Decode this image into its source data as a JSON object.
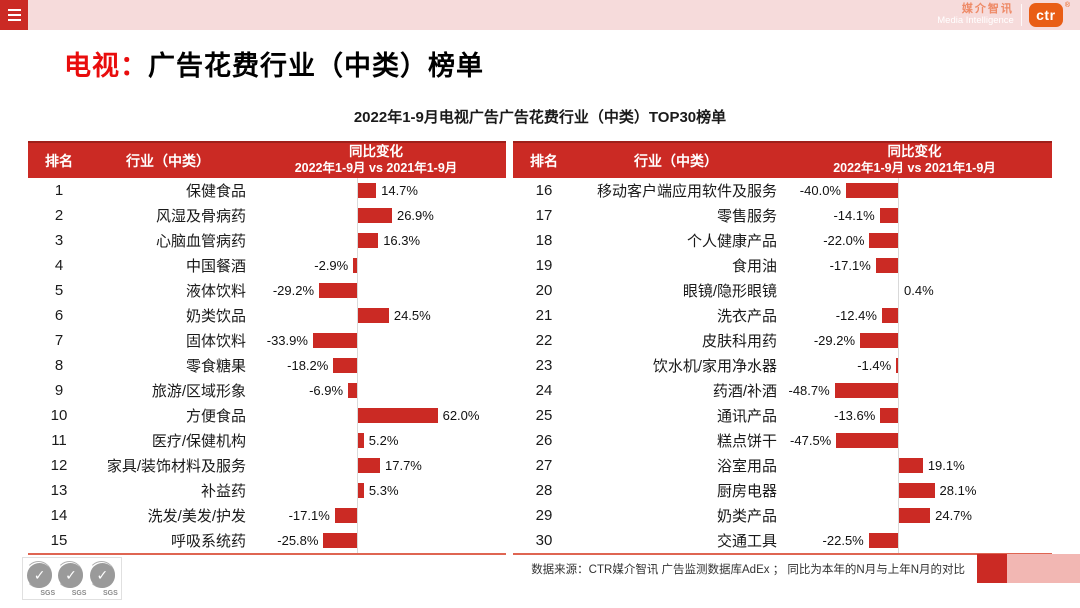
{
  "top_bar": {
    "brand": {
      "cn": "媒介智讯",
      "en": "Media Intelligence",
      "logo": "ctr",
      "registered_mark": "®"
    }
  },
  "title": {
    "highlight": "电视：",
    "rest": "广告花费行业（中类）榜单"
  },
  "subtitle": "2022年1-9月电视广告广告花费行业（中类）TOP30榜单",
  "table_headers": {
    "rank": "排名",
    "industry": "行业（中类）",
    "change_line1": "同比变化",
    "change_line2": "2022年1-9月 vs 2021年1-9月"
  },
  "footer": {
    "source_note": "数据来源：CTR媒介智讯 广告监测数据库AdEx ； 同比为本年的N月与上年N月的对比",
    "sgs_label": "SGS"
  },
  "colors": {
    "accent_red": "#cb2a24",
    "topbar_pink": "#f6dbdb",
    "ctr_orange": "#e95d15",
    "brand_salmon": "#ee8a67",
    "bottom_line_salmon": "#df6552",
    "axis_gray": "#d9d9d9",
    "footer_pink": "#f2b7b3"
  },
  "chart_data": {
    "type": "bar",
    "orientation": "horizontal",
    "title": "2022年1-9月电视广告广告花费行业（中类）TOP30榜单",
    "value_unit": "%",
    "value_format": "one_decimal_percent",
    "bar_color": "#cb2a24",
    "zero_axis": true,
    "panels": [
      {
        "ranks": [
          1,
          2,
          3,
          4,
          5,
          6,
          7,
          8,
          9,
          10,
          11,
          12,
          13,
          14,
          15
        ],
        "categories": [
          "保健食品",
          "风湿及骨病药",
          "心脑血管病药",
          "中国餐酒",
          "液体饮料",
          "奶类饮品",
          "固体饮料",
          "零食糖果",
          "旅游/区域形象",
          "方便食品",
          "医疗/保健机构",
          "家具/装饰材料及服务",
          "补益药",
          "洗发/美发/护发",
          "呼吸系统药"
        ],
        "values": [
          14.7,
          26.9,
          16.3,
          -2.9,
          -29.2,
          24.5,
          -33.9,
          -18.2,
          -6.9,
          62.0,
          5.2,
          17.7,
          5.3,
          -17.1,
          -25.8
        ]
      },
      {
        "ranks": [
          16,
          17,
          18,
          19,
          20,
          21,
          22,
          23,
          24,
          25,
          26,
          27,
          28,
          29,
          30
        ],
        "categories": [
          "移动客户端应用软件及服务",
          "零售服务",
          "个人健康产品",
          "食用油",
          "眼镜/隐形眼镜",
          "洗衣产品",
          "皮肤科用药",
          "饮水机/家用净水器",
          "药酒/补酒",
          "通讯产品",
          "糕点饼干",
          "浴室用品",
          "厨房电器",
          "奶类产品",
          "交通工具"
        ],
        "values": [
          -40.0,
          -14.1,
          -22.0,
          -17.1,
          0.4,
          -12.4,
          -29.2,
          -1.4,
          -48.7,
          -13.6,
          -47.5,
          19.1,
          28.1,
          24.7,
          -22.5
        ]
      }
    ]
  }
}
